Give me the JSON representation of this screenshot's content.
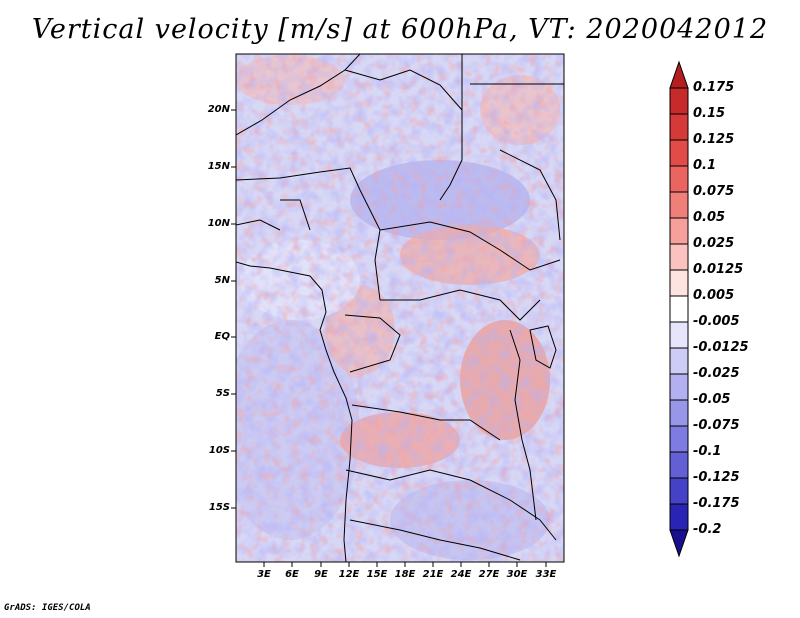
{
  "title": "Vertical velocity [m/s] at 600hPa, VT: 2020042012",
  "credit": "GrADS: IGES/COLA",
  "map": {
    "lat_labels": [
      "20N",
      "15N",
      "10N",
      "5N",
      "EQ",
      "5S",
      "10S",
      "15S"
    ],
    "lon_labels": [
      "3E",
      "6E",
      "9E",
      "12E",
      "15E",
      "18E",
      "21E",
      "24E",
      "27E",
      "30E",
      "33E"
    ]
  },
  "colorbar": {
    "labels": [
      "0.175",
      "0.15",
      "0.125",
      "0.1",
      "0.075",
      "0.05",
      "0.025",
      "0.0125",
      "0.005",
      "-0.005",
      "-0.0125",
      "-0.025",
      "-0.05",
      "-0.075",
      "-0.1",
      "-0.125",
      "-0.175",
      "-0.2"
    ],
    "colors": [
      "#b41e1e",
      "#c62a2a",
      "#d63a38",
      "#e14b48",
      "#ea6460",
      "#f07f7a",
      "#f6a09b",
      "#fac3bf",
      "#fde4e1",
      "#ffffff",
      "#e6e5fb",
      "#ccccf6",
      "#b2b0f0",
      "#9896e8",
      "#7e7ce0",
      "#6360d6",
      "#4642c8",
      "#2a24b4",
      "#1a0e90"
    ]
  }
}
